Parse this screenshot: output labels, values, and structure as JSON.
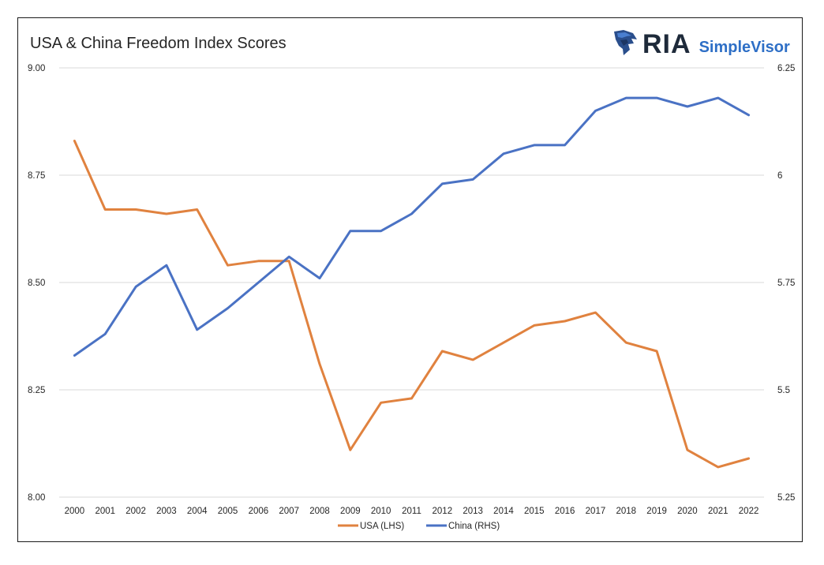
{
  "header": {
    "title": "USA & China Freedom Index Scores",
    "brand_primary": "RIA",
    "brand_secondary": "SimpleVisor",
    "brand_icon": "eagle-head-icon"
  },
  "colors": {
    "usa": "#e0823f",
    "china": "#4a72c4",
    "grid": "#d9d9d9",
    "brand_dark": "#1e2a3a",
    "brand_blue": "#2e6fc6"
  },
  "chart_data": {
    "type": "line",
    "title": "USA & China Freedom Index Scores",
    "categories": [
      "2000",
      "2001",
      "2002",
      "2003",
      "2004",
      "2005",
      "2006",
      "2007",
      "2008",
      "2009",
      "2010",
      "2011",
      "2012",
      "2013",
      "2014",
      "2015",
      "2016",
      "2017",
      "2018",
      "2019",
      "2020",
      "2021",
      "2022"
    ],
    "series": [
      {
        "name": "USA (LHS)",
        "axis": "left",
        "values": [
          8.83,
          8.67,
          8.67,
          8.66,
          8.67,
          8.54,
          8.55,
          8.55,
          8.31,
          8.11,
          8.22,
          8.23,
          8.34,
          8.32,
          8.36,
          8.4,
          8.41,
          8.43,
          8.36,
          8.34,
          8.11,
          8.07,
          8.09
        ]
      },
      {
        "name": "China (RHS)",
        "axis": "right",
        "values": [
          5.58,
          5.63,
          5.74,
          5.79,
          5.64,
          5.69,
          5.75,
          5.81,
          5.76,
          5.87,
          5.87,
          5.91,
          5.98,
          5.99,
          6.05,
          6.07,
          6.07,
          6.15,
          6.18,
          6.18,
          6.16,
          6.18,
          6.14
        ]
      }
    ],
    "ylim_left": [
      8.0,
      9.0
    ],
    "yticks_left": [
      "8.00",
      "8.25",
      "8.50",
      "8.75",
      "9.00"
    ],
    "ylim_right": [
      5.25,
      6.25
    ],
    "yticks_right": [
      "5.25",
      "5.5",
      "5.75",
      "6",
      "6.25"
    ],
    "grid": true,
    "legend_position": "bottom-center"
  }
}
